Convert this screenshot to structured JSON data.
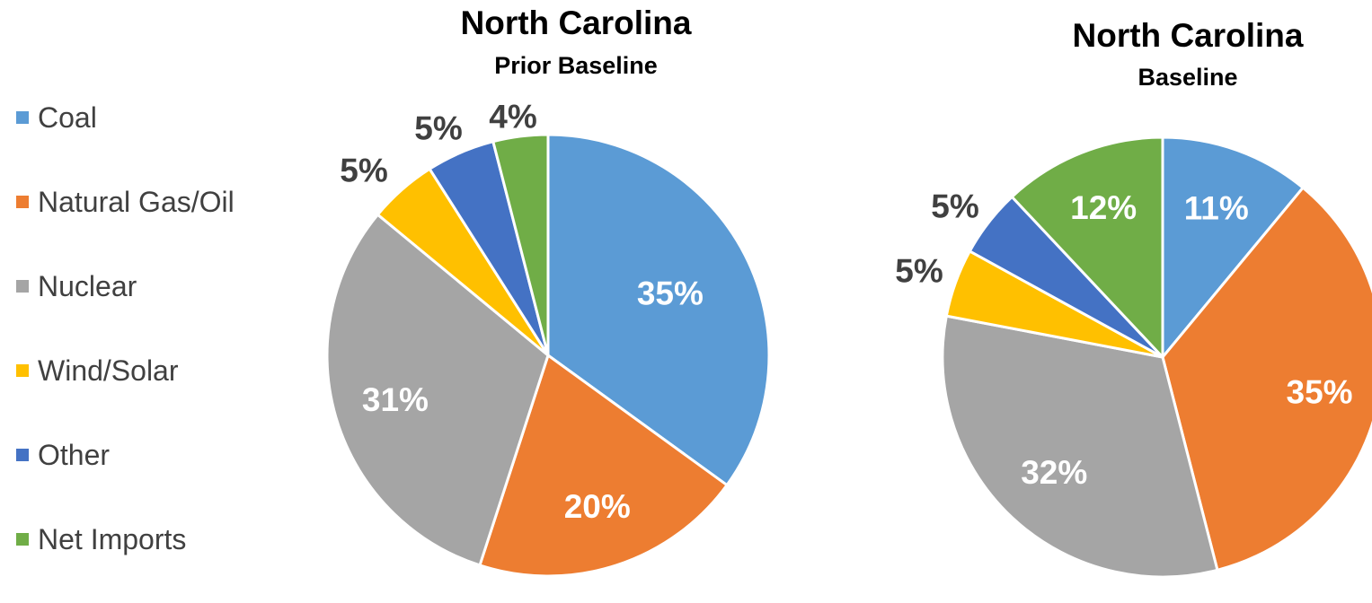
{
  "legend": [
    {
      "name": "Coal",
      "color": "#5B9BD5"
    },
    {
      "name": "Natural Gas/Oil",
      "color": "#ED7D31"
    },
    {
      "name": "Nuclear",
      "color": "#A5A5A5"
    },
    {
      "name": "Wind/Solar",
      "color": "#FFC000"
    },
    {
      "name": "Other",
      "color": "#4472C4"
    },
    {
      "name": "Net Imports",
      "color": "#70AD47"
    }
  ],
  "chart_data": [
    {
      "type": "pie",
      "title": "North Carolina",
      "subtitle": "Prior Baseline",
      "categories": [
        "Coal",
        "Natural Gas/Oil",
        "Nuclear",
        "Wind/Solar",
        "Other",
        "Net Imports"
      ],
      "values": [
        35,
        20,
        31,
        5,
        5,
        4
      ],
      "labels": [
        "35%",
        "20%",
        "31%",
        "5%",
        "5%",
        "4%"
      ],
      "legend_position": "left"
    },
    {
      "type": "pie",
      "title": "North Carolina",
      "subtitle": "Baseline",
      "categories": [
        "Coal",
        "Natural Gas/Oil",
        "Nuclear",
        "Wind/Solar",
        "Other",
        "Net Imports"
      ],
      "values": [
        11,
        35,
        32,
        5,
        5,
        12
      ],
      "labels": [
        "11%",
        "35%",
        "32%",
        "5%",
        "5%",
        "12%"
      ],
      "legend_position": "left"
    }
  ]
}
